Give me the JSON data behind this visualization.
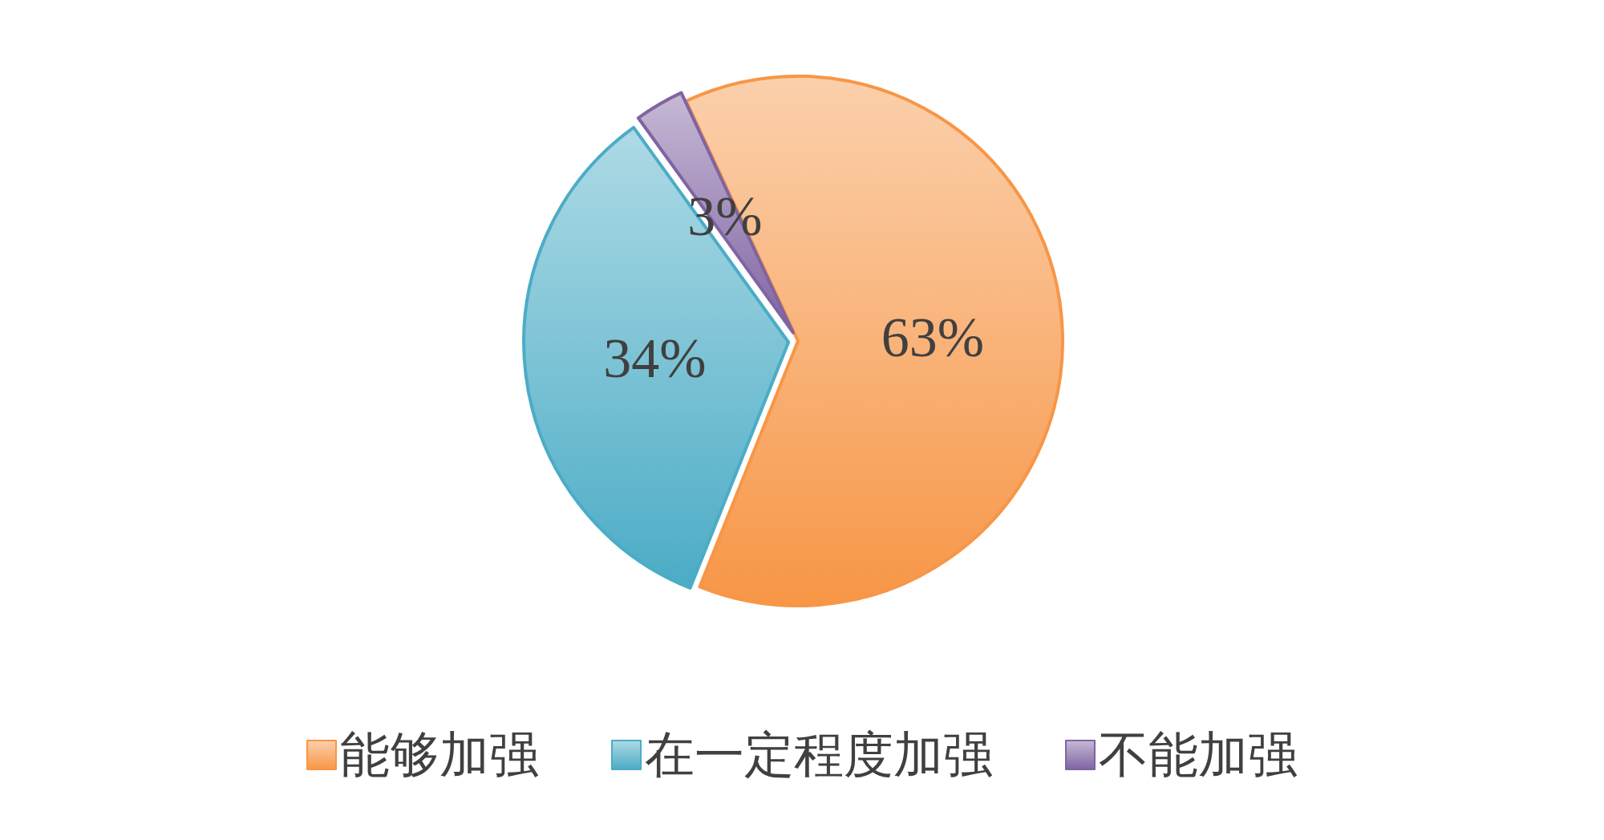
{
  "chart_data": {
    "type": "pie",
    "categories": [
      "能够加强",
      "在一定程度加强",
      "不能加强"
    ],
    "values": [
      63,
      34,
      3
    ],
    "colors": [
      "#f79646",
      "#4bacc6",
      "#8064a2"
    ],
    "value_labels": [
      "63%",
      "34%",
      "3%"
    ],
    "legend": "bottom"
  }
}
